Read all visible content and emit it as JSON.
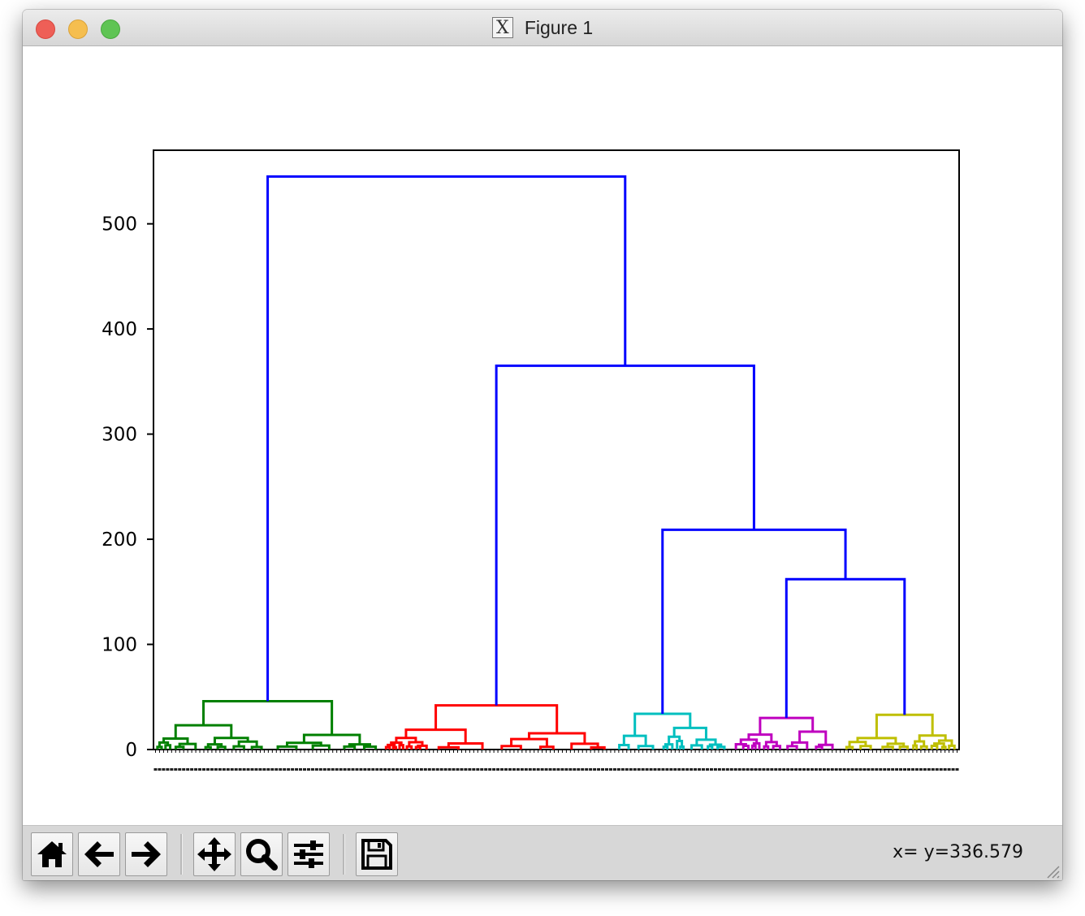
{
  "window": {
    "title": "Figure 1"
  },
  "toolbar": {
    "buttons": [
      {
        "name": "home-button",
        "icon": "home-icon"
      },
      {
        "name": "back-button",
        "icon": "arrow-left-icon"
      },
      {
        "name": "forward-button",
        "icon": "arrow-right-icon"
      },
      {
        "name": "pan-button",
        "icon": "move-icon"
      },
      {
        "name": "zoom-button",
        "icon": "magnifier-icon"
      },
      {
        "name": "configure-subplots-button",
        "icon": "sliders-icon"
      },
      {
        "name": "save-button",
        "icon": "floppy-disk-icon"
      }
    ],
    "coords": "x= y=336.579"
  },
  "chart_data": {
    "type": "dendrogram",
    "title": "",
    "xlabel": "",
    "ylabel": "",
    "ylim": [
      0,
      570
    ],
    "yticks": [
      0,
      100,
      200,
      300,
      400,
      500
    ],
    "leaf_count": 200,
    "grid": false,
    "colors": {
      "link": "#0000ff",
      "clusters": [
        "#008000",
        "#ff0000",
        "#00bfbf",
        "#bf00bf",
        "#bfbf00"
      ]
    },
    "links": [
      {
        "x": 0.125,
        "y": 545,
        "children": [
          0.075,
          0.35
        ],
        "child_heights": [
          46,
          365
        ],
        "color": "#0000ff"
      },
      {
        "x": 0.35,
        "y": 365,
        "children": [
          0.218,
          0.534
        ],
        "child_heights": [
          42,
          209
        ],
        "color": "#0000ff"
      },
      {
        "x": 0.534,
        "y": 209,
        "children": [
          0.373,
          0.623
        ],
        "child_heights": [
          34,
          162
        ],
        "color": "#0000ff"
      },
      {
        "x": 0.623,
        "y": 162,
        "children": [
          0.465,
          0.73
        ],
        "child_heights": [
          30,
          33
        ],
        "color": "#0000ff"
      }
    ],
    "clusters": [
      {
        "color": "#008000",
        "range": [
          0.0,
          0.285
        ],
        "root_y": 46
      },
      {
        "color": "#ff0000",
        "range": [
          0.285,
          0.57
        ],
        "root_y": 42
      },
      {
        "color": "#00bfbf",
        "range": [
          0.57,
          0.715
        ],
        "root_y": 34
      },
      {
        "color": "#bf00bf",
        "range": [
          0.715,
          0.855
        ],
        "root_y": 30
      },
      {
        "color": "#bfbf00",
        "range": [
          0.855,
          1.0
        ],
        "root_y": 33
      }
    ]
  }
}
